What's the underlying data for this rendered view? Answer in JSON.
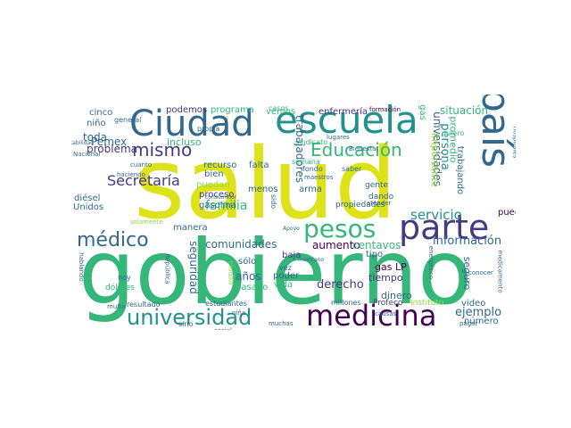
{
  "wordcloud": {
    "background": "#ffffff",
    "palette": [
      "#dde318",
      "#35b779",
      "#21918c",
      "#31688e",
      "#443983",
      "#440154",
      "#90d743",
      "#fde725"
    ],
    "words": [
      {
        "text": "salud",
        "color": "#dde318"
      },
      {
        "text": "gobierno",
        "color": "#35b779"
      },
      {
        "text": "escuela",
        "color": "#21918c"
      },
      {
        "text": "Ciudad",
        "color": "#31688e"
      },
      {
        "text": "país",
        "color": "#31688e"
      },
      {
        "text": "parte",
        "color": "#443983"
      },
      {
        "text": "precio",
        "color": "#35b779"
      },
      {
        "text": "medicina",
        "color": "#440154"
      },
      {
        "text": "universidad",
        "color": "#21918c"
      },
      {
        "text": "pesos",
        "color": "#35b779"
      },
      {
        "text": "médico",
        "color": "#31688e"
      },
      {
        "text": "Educación",
        "color": "#35b779"
      },
      {
        "text": "mismo",
        "color": "#443983"
      },
      {
        "text": "Secretaría",
        "color": "#443983"
      },
      {
        "text": "familia",
        "color": "#35b779"
      },
      {
        "text": "comunidades",
        "color": "#31688e"
      },
      {
        "text": "universidades",
        "color": "#31688e"
      },
      {
        "text": "servicio",
        "color": "#21918c"
      },
      {
        "text": "información",
        "color": "#31688e"
      },
      {
        "text": "persona",
        "color": "#21918c"
      },
      {
        "text": "trabajadores",
        "color": "#31688e"
      },
      {
        "text": "derecho",
        "color": "#443983"
      },
      {
        "text": "ejemplo",
        "color": "#31688e"
      },
      {
        "text": "problema",
        "color": "#443983"
      },
      {
        "text": "toda",
        "color": "#31688e"
      },
      {
        "text": "Pemex",
        "color": "#31688e"
      },
      {
        "text": "aumento",
        "color": "#440154"
      },
      {
        "text": "centavos",
        "color": "#35b779"
      },
      {
        "text": "promedio",
        "color": "#35b779"
      },
      {
        "text": "importante",
        "color": "#90d743"
      },
      {
        "text": "situación",
        "color": "#35b779"
      },
      {
        "text": "enfermería",
        "color": "#443983"
      },
      {
        "text": "seguridad",
        "color": "#31688e"
      },
      {
        "text": "años",
        "color": "#31688e"
      },
      {
        "text": "gas LP",
        "color": "#440154"
      },
      {
        "text": "tiempo",
        "color": "#443983"
      },
      {
        "text": "dinero",
        "color": "#31688e"
      },
      {
        "text": "seguro",
        "color": "#31688e"
      },
      {
        "text": "número",
        "color": "#31688e"
      },
      {
        "text": "pueden",
        "color": "#440154"
      },
      {
        "text": "trabajando",
        "color": "#31688e"
      },
      {
        "text": "cinco",
        "color": "#31688e"
      },
      {
        "text": "podemos",
        "color": "#443983"
      },
      {
        "text": "programa",
        "color": "#35b779"
      },
      {
        "text": "vemos",
        "color": "#35b779"
      },
      {
        "text": "niño",
        "color": "#31688e"
      },
      {
        "text": "incluso",
        "color": "#35b779"
      },
      {
        "text": "recurso",
        "color": "#31688e"
      },
      {
        "text": "bien",
        "color": "#31688e"
      },
      {
        "text": "falta",
        "color": "#31688e"
      },
      {
        "text": "puedan",
        "color": "#90d743"
      },
      {
        "text": "proceso",
        "color": "#443983"
      },
      {
        "text": "gasolina",
        "color": "#31688e"
      },
      {
        "text": "Unidos",
        "color": "#31688e"
      },
      {
        "text": "diésel",
        "color": "#31688e"
      },
      {
        "text": "manera",
        "color": "#31688e"
      },
      {
        "text": "menos",
        "color": "#31688e"
      },
      {
        "text": "arma",
        "color": "#31688e"
      },
      {
        "text": "baja",
        "color": "#443983"
      },
      {
        "text": "tipo",
        "color": "#31688e"
      },
      {
        "text": "sólo",
        "color": "#31688e"
      },
      {
        "text": "pasado",
        "color": "#35b779"
      },
      {
        "text": "poder",
        "color": "#31688e"
      },
      {
        "text": "vida",
        "color": "#35b779"
      },
      {
        "text": "vez",
        "color": "#31688e"
      },
      {
        "text": "Profeco",
        "color": "#443983"
      },
      {
        "text": "millones",
        "color": "#31688e"
      },
      {
        "text": "video",
        "color": "#31688e"
      },
      {
        "text": "Instituto",
        "color": "#90d743"
      },
      {
        "text": "propiedades",
        "color": "#31688e"
      },
      {
        "text": "gente",
        "color": "#31688e"
      },
      {
        "text": "dando",
        "color": "#31688e"
      },
      {
        "text": "hoy",
        "color": "#31688e"
      },
      {
        "text": "dólares",
        "color": "#35b779"
      },
      {
        "text": "resultado",
        "color": "#31688e"
      },
      {
        "text": "estudiantes",
        "color": "#31688e"
      },
      {
        "text": "casos",
        "color": "#35b779"
      },
      {
        "text": "sindicato",
        "color": "#35b779"
      },
      {
        "text": "fondo",
        "color": "#31688e"
      },
      {
        "text": "saber",
        "color": "#31688e"
      },
      {
        "text": "quiero",
        "color": "#35b779"
      },
      {
        "text": "propia",
        "color": "#31688e"
      },
      {
        "text": "general",
        "color": "#31688e"
      },
      {
        "text": "cuanto",
        "color": "#31688e"
      },
      {
        "text": "haciendo",
        "color": "#31688e"
      },
      {
        "text": "formación",
        "color": "#440154"
      },
      {
        "text": "causas",
        "color": "#31688e"
      },
      {
        "text": "muchas",
        "color": "#31688e"
      },
      {
        "text": "conocer",
        "color": "#31688e"
      },
      {
        "text": "social",
        "color": "#31688e"
      },
      {
        "text": "solamente",
        "color": "#90d743"
      },
      {
        "text": "República",
        "color": "#31688e"
      },
      {
        "text": "multa",
        "color": "#31688e"
      },
      {
        "text": "hablando",
        "color": "#31688e"
      },
      {
        "text": "medicamento",
        "color": "#31688e"
      },
      {
        "text": "pagar",
        "color": "#31688e"
      },
      {
        "text": "maestros",
        "color": "#31688e"
      },
      {
        "text": "gas",
        "color": "#35b779"
      },
      {
        "text": "Bienestar",
        "color": "#31688e"
      },
      {
        "text": "Nacional",
        "color": "#31688e"
      },
      {
        "text": "estabilidad",
        "color": "#31688e"
      },
      {
        "text": "consumidor",
        "color": "#31688e"
      },
      {
        "text": "mexicano",
        "color": "#31688e"
      },
      {
        "text": "energético",
        "color": "#31688e"
      },
      {
        "text": "hospitales",
        "color": "#31688e"
      },
      {
        "text": "modelo",
        "color": "#31688e"
      },
      {
        "text": "Apoyo",
        "color": "#31688e"
      },
      {
        "text": "lugares",
        "color": "#31688e"
      },
      {
        "text": "semana",
        "color": "#35b779"
      },
      {
        "text": "sido",
        "color": "#31688e"
      },
      {
        "text": "atender",
        "color": "#31688e"
      },
      {
        "text": "ciudad",
        "color": "#90d743"
      },
      {
        "text": "niña",
        "color": "#31688e"
      },
      {
        "text": "sino",
        "color": "#31688e"
      }
    ]
  }
}
